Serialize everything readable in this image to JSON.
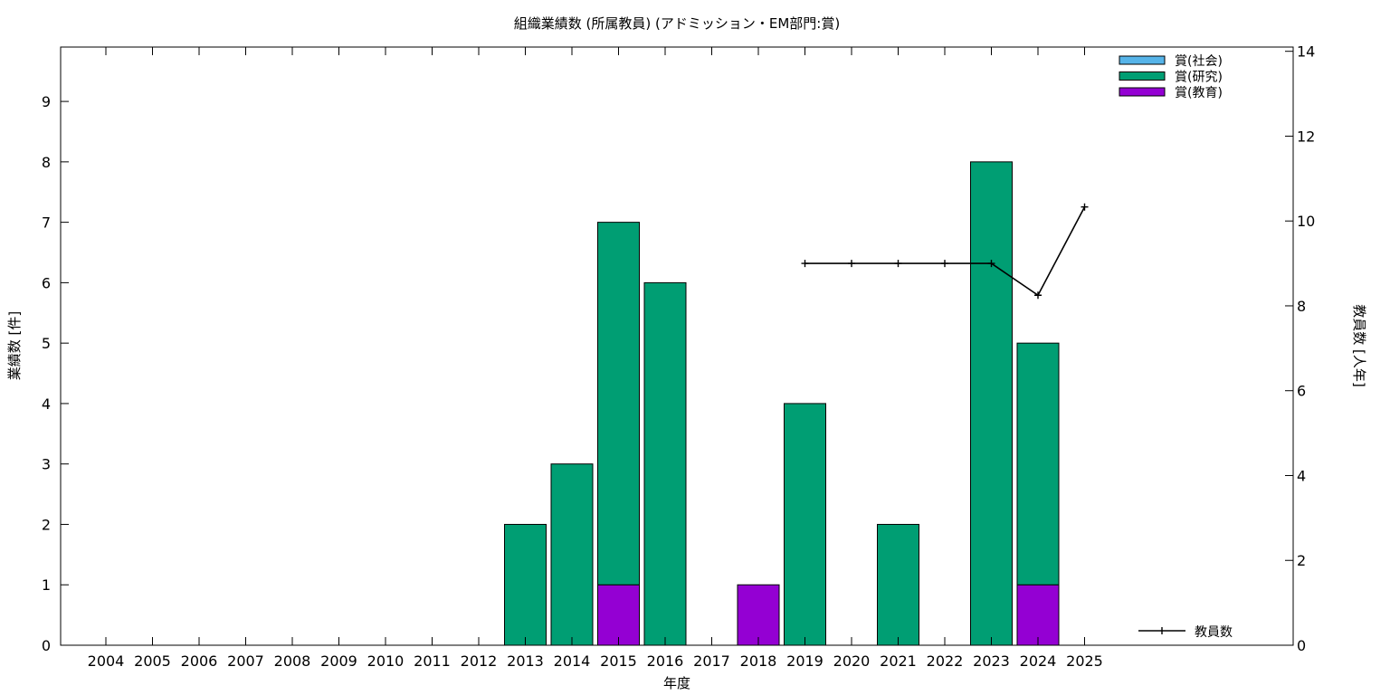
{
  "chart_data": {
    "type": "bar",
    "title": "組織業績数 (所属教員) (アドミッション・EM部門:賞)",
    "xlabel": "年度",
    "ylabel": "業績数 [件]",
    "y2label": "教員数 [人年]",
    "categories": [
      "2004",
      "2005",
      "2006",
      "2007",
      "2008",
      "2009",
      "2010",
      "2011",
      "2012",
      "2013",
      "2014",
      "2015",
      "2016",
      "2017",
      "2018",
      "2019",
      "2020",
      "2021",
      "2022",
      "2023",
      "2024",
      "2025"
    ],
    "ylim": [
      0,
      9.9
    ],
    "yticks": [
      0,
      1,
      2,
      3,
      4,
      5,
      6,
      7,
      8,
      9
    ],
    "y2lim": [
      0,
      14.1
    ],
    "y2ticks": [
      0,
      2,
      4,
      6,
      8,
      10,
      12,
      14
    ],
    "stacked": true,
    "series": [
      {
        "name": "賞(教育)",
        "color": "#9400d3",
        "values": [
          0,
          0,
          0,
          0,
          0,
          0,
          0,
          0,
          0,
          0,
          0,
          1,
          0,
          0,
          1,
          0,
          0,
          0,
          0,
          0,
          1,
          0
        ]
      },
      {
        "name": "賞(研究)",
        "color": "#009e73",
        "values": [
          0,
          0,
          0,
          0,
          0,
          0,
          0,
          0,
          0,
          2,
          3,
          6,
          6,
          0,
          0,
          4,
          0,
          2,
          0,
          8,
          4,
          0
        ]
      },
      {
        "name": "賞(社会)",
        "color": "#56b4e9",
        "values": [
          0,
          0,
          0,
          0,
          0,
          0,
          0,
          0,
          0,
          0,
          0,
          0,
          0,
          0,
          0,
          0,
          0,
          0,
          0,
          0,
          0,
          0
        ]
      }
    ],
    "line_series": {
      "name": "教員数",
      "color": "#000000",
      "axis": "right",
      "x": [
        "2019",
        "2020",
        "2021",
        "2022",
        "2023",
        "2024",
        "2025"
      ],
      "values": [
        9,
        9,
        9,
        9,
        9,
        8.25,
        10.33
      ]
    },
    "legend_top": [
      "賞(社会)",
      "賞(研究)",
      "賞(教育)"
    ],
    "legend_bottom": "教員数",
    "grid": false
  }
}
